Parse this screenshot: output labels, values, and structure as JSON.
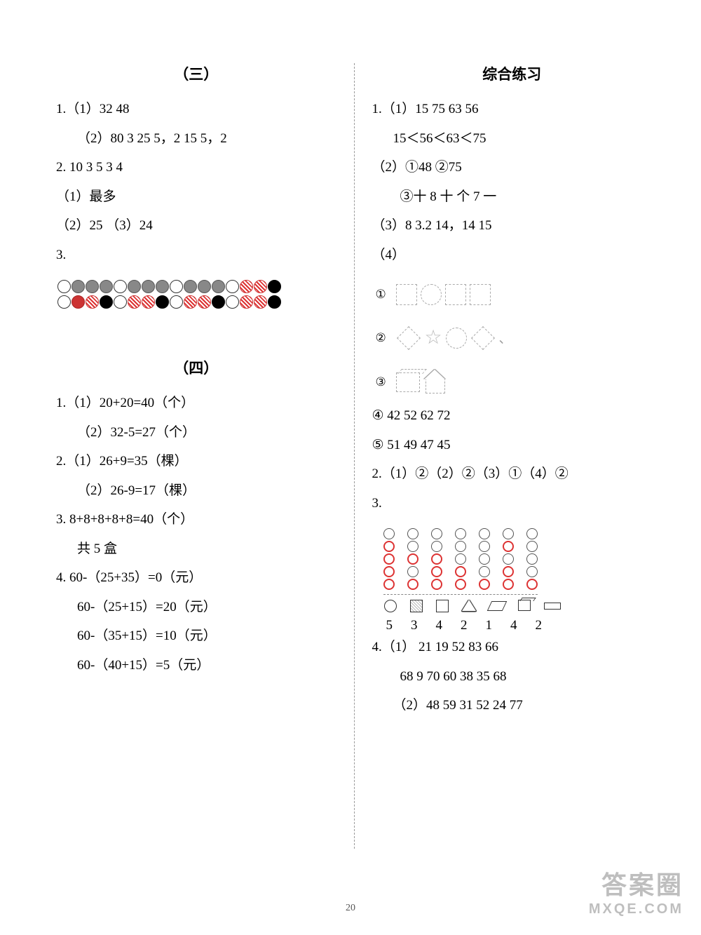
{
  "pagenum": "20",
  "watermark": {
    "line1": "答案圈",
    "line2": "MXQE.COM"
  },
  "left": {
    "sec3": {
      "title": "（三）",
      "l1": "1.（1）32   48",
      "l2": "（2）80   3   25   5，2   15   5，2",
      "l3": "2. 10   3   5   3   4",
      "l4": "（1）最多",
      "l5": "（2）25  （3）24",
      "l6": "3.",
      "row1": [
        "w",
        "g",
        "g",
        "g",
        "w",
        "g",
        "g",
        "g",
        "w",
        "g",
        "g",
        "g",
        "w",
        "r",
        "r",
        "b"
      ],
      "row2": [
        "w",
        "rf",
        "r",
        "b",
        "w",
        "r",
        "r",
        "b",
        "w",
        "r",
        "r",
        "b",
        "w",
        "r",
        "r",
        "b"
      ]
    },
    "sec4": {
      "title": "（四）",
      "l1": "1.（1）20+20=40（个）",
      "l2": "（2）32-5=27（个）",
      "l3": "2.（1）26+9=35（棵）",
      "l4": "（2）26-9=17（棵）",
      "l5": "3.   8+8+8+8+8=40（个）",
      "l6": "共 5 盒",
      "l7": "4. 60-（25+35）=0（元）",
      "l8": "60-（25+15）=20（元）",
      "l9": "60-（35+15）=10（元）",
      "l10": "60-（40+15）=5（元）"
    }
  },
  "right": {
    "title": "综合练习",
    "l1": "1.（1）15   75   63    56",
    "l2": "15＜56＜63＜75",
    "l3": "（2）①48   ②75",
    "l4": "③十   8   十   个   7   一",
    "l5": "（3）8   3.2   14，14   15",
    "l6": "（4）",
    "shape1_label": "①",
    "shape2_label": "②",
    "shape3_label": "③",
    "l7": "④  42   52   62   72",
    "l8": "⑤  51   49   47   45",
    "l9": "2.（1）②（2）②（3）①（4）②",
    "l10": "3.",
    "chart": {
      "cols": [
        [
          0,
          1,
          1,
          1,
          1
        ],
        [
          0,
          0,
          1,
          0,
          1
        ],
        [
          0,
          0,
          1,
          1,
          1
        ],
        [
          0,
          0,
          0,
          1,
          1
        ],
        [
          0,
          0,
          0,
          0,
          1
        ],
        [
          0,
          1,
          0,
          1,
          1
        ],
        [
          0,
          0,
          0,
          0,
          1
        ]
      ],
      "nums": [
        "5",
        "3",
        "4",
        "2",
        "1",
        "4",
        "2"
      ]
    },
    "l11": "4.（1） 21   19   52   83   66",
    "l12": "68   9   70   60   38   35   68",
    "l13": "（2）48   59   31   52   24   77"
  }
}
